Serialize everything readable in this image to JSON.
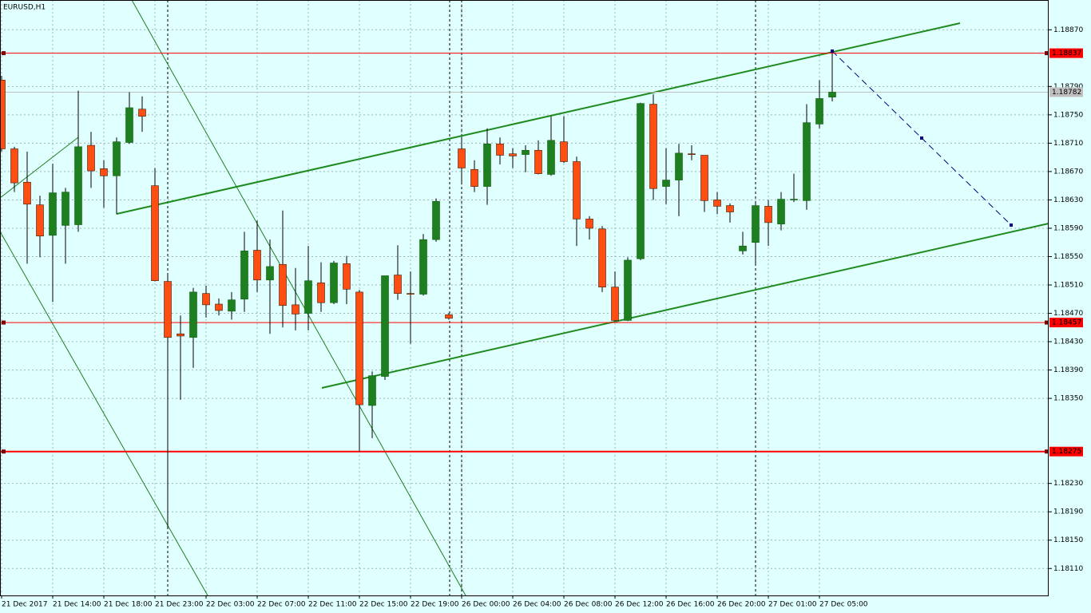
{
  "chart_data": {
    "type": "candlestick",
    "title": "EURUSD,H1",
    "categories": [
      "21 Dec 2017",
      null,
      null,
      null,
      "21 Dec 14:00",
      null,
      null,
      null,
      "21 Dec 18:00",
      null,
      null,
      null,
      "21 Dec 23:00",
      null,
      null,
      null,
      "22 Dec 03:00",
      null,
      null,
      null,
      "22 Dec 07:00",
      null,
      null,
      null,
      "22 Dec 11:00",
      null,
      null,
      null,
      "22 Dec 15:00",
      null,
      null,
      null,
      "22 Dec 19:00",
      null,
      null,
      null,
      "26 Dec 00:00",
      null,
      null,
      null,
      "26 Dec 04:00",
      null,
      null,
      null,
      "26 Dec 08:00",
      null,
      null,
      null,
      "26 Dec 12:00",
      null,
      null,
      null,
      "26 Dec 16:00",
      null,
      null,
      null,
      "26 Dec 20:00",
      null,
      null,
      null,
      "27 Dec 01:00",
      null,
      null,
      null,
      "27 Dec 05:00",
      null
    ],
    "open": [
      1.18799,
      1.18702,
      1.18655,
      1.18623,
      1.1858,
      1.18594,
      1.18595,
      1.18707,
      1.18674,
      1.18664,
      1.18711,
      1.18758,
      1.1865,
      1.18515,
      1.18441,
      1.18436,
      1.18498,
      1.18483,
      1.18473,
      1.1849,
      1.18559,
      1.18517,
      1.18539,
      1.18482,
      1.1847,
      1.18513,
      1.18485,
      1.1854,
      1.185,
      1.1834,
      1.18381,
      1.18524,
      1.18498,
      1.18497,
      1.18574,
      1.18468,
      1.18702,
      1.18673,
      1.18649,
      1.18709,
      1.18695,
      1.18694,
      1.187,
      1.18666,
      1.18712,
      1.18684,
      1.18603,
      1.18589,
      1.18507,
      1.1846,
      1.18547,
      1.18765,
      1.18649,
      1.18658,
      1.18695,
      1.18693,
      1.1863,
      1.18622,
      1.18558,
      1.1857,
      1.18621,
      1.18596,
      1.1863,
      1.18629,
      1.18737,
      1.18775
    ],
    "high": [
      1.18805,
      1.18705,
      1.18698,
      1.18636,
      1.18681,
      1.18647,
      1.18784,
      1.18726,
      1.18686,
      1.18718,
      1.18782,
      1.18776,
      1.18675,
      1.18525,
      1.18467,
      1.18506,
      1.18509,
      1.18491,
      1.185,
      1.18585,
      1.18601,
      1.18574,
      1.18615,
      1.18534,
      1.18565,
      1.18542,
      1.18544,
      1.18551,
      1.18503,
      1.18388,
      1.18523,
      1.18566,
      1.18529,
      1.18582,
      1.18632,
      1.1847,
      1.18719,
      1.18686,
      1.18731,
      1.18718,
      1.18703,
      1.18707,
      1.18714,
      1.18748,
      1.18748,
      1.18691,
      1.18607,
      1.18593,
      1.18529,
      1.18549,
      1.18767,
      1.18779,
      1.18703,
      1.18709,
      1.18707,
      1.18693,
      1.18641,
      1.18625,
      1.18585,
      1.18628,
      1.1863,
      1.18641,
      1.18667,
      1.18765,
      1.18799,
      1.18837
    ],
    "low": [
      1.18698,
      1.18641,
      1.1854,
      1.18549,
      1.18486,
      1.1854,
      1.18585,
      1.18647,
      1.18619,
      1.1861,
      1.18709,
      1.18726,
      1.18515,
      1.18168,
      1.18348,
      1.18393,
      1.18464,
      1.18467,
      1.18461,
      1.18472,
      1.185,
      1.18441,
      1.1845,
      1.18446,
      1.18446,
      1.18472,
      1.18483,
      1.18483,
      1.18275,
      1.18294,
      1.18376,
      1.18489,
      1.18427,
      1.18495,
      1.18571,
      1.18461,
      1.18655,
      1.18641,
      1.18623,
      1.1868,
      1.18675,
      1.18669,
      1.18666,
      1.18664,
      1.18682,
      1.18565,
      1.18574,
      1.185,
      1.18459,
      1.18459,
      1.18545,
      1.1863,
      1.18624,
      1.18607,
      1.18686,
      1.18613,
      1.1861,
      1.18598,
      1.18553,
      1.1854,
      1.18565,
      1.18587,
      1.18627,
      1.18616,
      1.18731,
      1.18769
    ],
    "close": [
      1.18702,
      1.18654,
      1.18624,
      1.18579,
      1.1864,
      1.18641,
      1.18705,
      1.18671,
      1.18664,
      1.18712,
      1.1876,
      1.18748,
      1.18516,
      1.18436,
      1.18438,
      1.185,
      1.18482,
      1.18474,
      1.18489,
      1.18558,
      1.18517,
      1.18536,
      1.18481,
      1.18469,
      1.18516,
      1.18485,
      1.18541,
      1.18504,
      1.18341,
      1.18382,
      1.18523,
      1.18498,
      1.18497,
      1.18574,
      1.18628,
      1.18463,
      1.18675,
      1.18649,
      1.18709,
      1.18693,
      1.18692,
      1.187,
      1.18667,
      1.18714,
      1.18684,
      1.18603,
      1.1859,
      1.18507,
      1.1846,
      1.18545,
      1.18766,
      1.18646,
      1.18658,
      1.18696,
      1.18694,
      1.18629,
      1.18621,
      1.18613,
      1.18565,
      1.18622,
      1.18598,
      1.18631,
      1.18631,
      1.18739,
      1.18773,
      1.18782
    ],
    "up_color": "#1e7f1e",
    "down_color": "#ff4d14",
    "ylim": [
      1.18072,
      1.18912
    ],
    "yticks": [
      {
        "value": 1.1887,
        "label": "1.18870"
      },
      {
        "value": 1.1879,
        "label": "1.18790"
      },
      {
        "value": 1.1875,
        "label": "1.18750"
      },
      {
        "value": 1.1871,
        "label": "1.18710"
      },
      {
        "value": 1.1867,
        "label": "1.18670"
      },
      {
        "value": 1.1863,
        "label": "1.18630"
      },
      {
        "value": 1.1859,
        "label": "1.18590"
      },
      {
        "value": 1.1855,
        "label": "1.18550"
      },
      {
        "value": 1.1851,
        "label": "1.18510"
      },
      {
        "value": 1.1847,
        "label": "1.18470"
      },
      {
        "value": 1.1843,
        "label": "1.18430"
      },
      {
        "value": 1.1839,
        "label": "1.18390"
      },
      {
        "value": 1.1835,
        "label": "1.18350"
      },
      {
        "value": 1.1823,
        "label": "1.18230"
      },
      {
        "value": 1.1819,
        "label": "1.18190"
      },
      {
        "value": 1.1815,
        "label": "1.18150"
      },
      {
        "value": 1.1811,
        "label": "1.18110"
      }
    ],
    "grid": true,
    "hlines": {
      "values": [
        1.18837,
        1.18457,
        1.18275
      ],
      "value_labels": [
        "1.18837",
        "1.18457",
        "1.18275"
      ],
      "color": "#ff0000"
    },
    "bid": {
      "value": 1.18782,
      "label": "1.18782",
      "color": "#c0c0c0"
    }
  }
}
